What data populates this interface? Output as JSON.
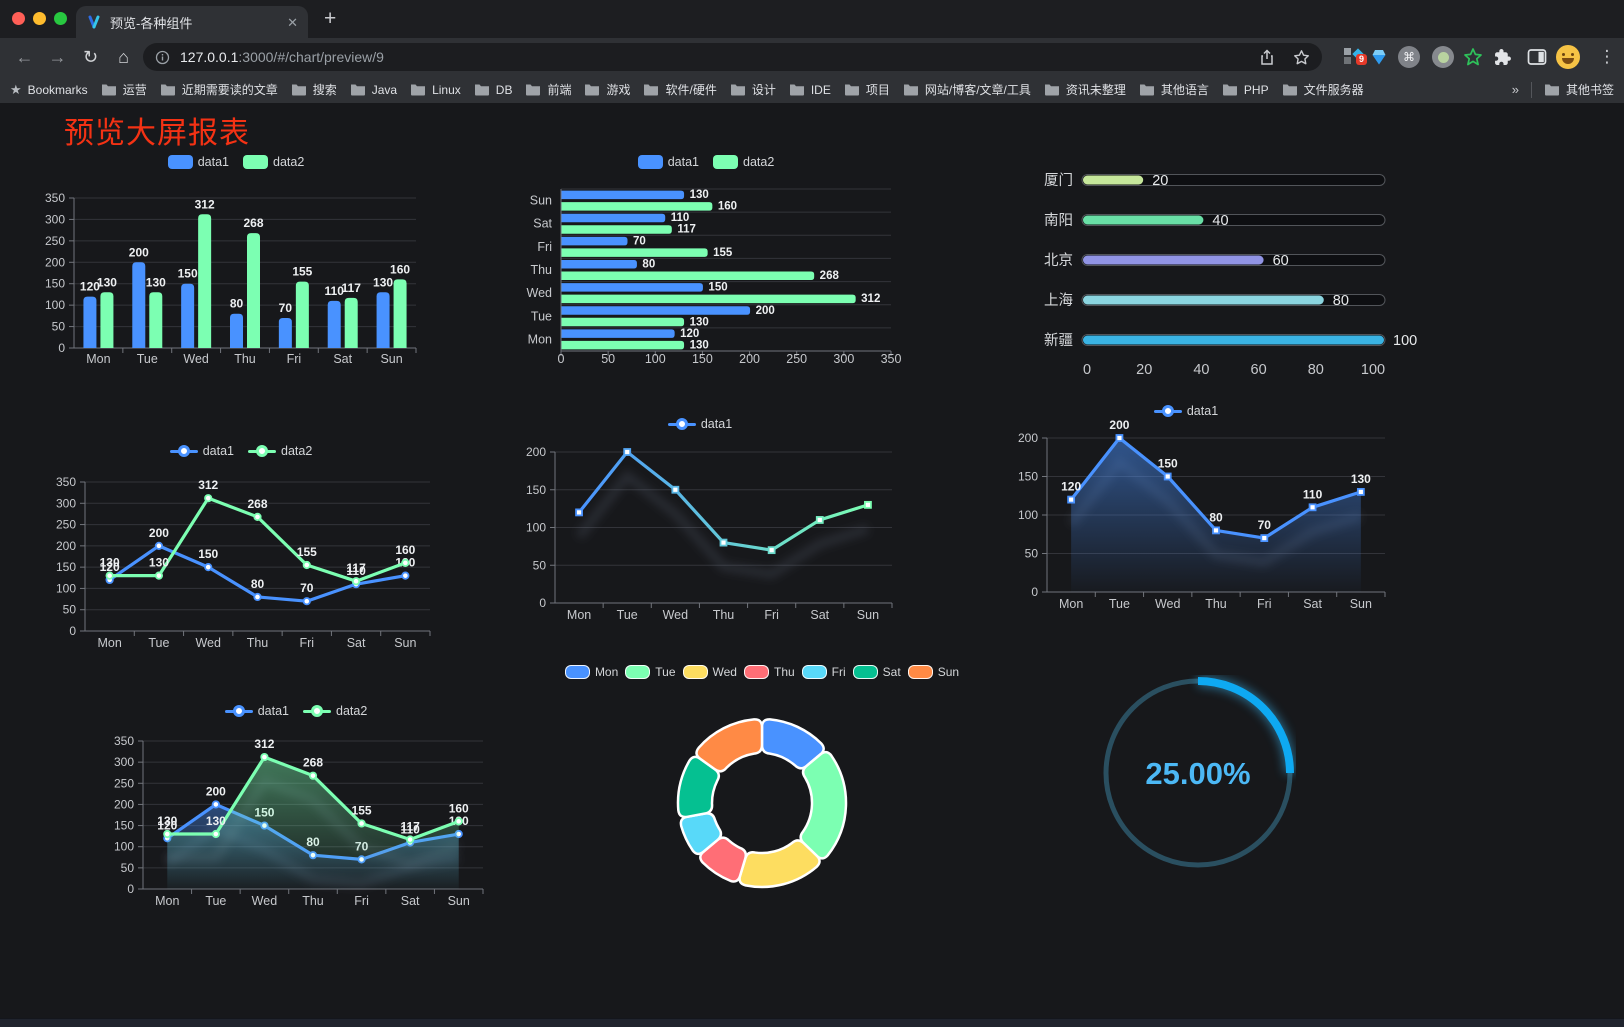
{
  "browser": {
    "tab_title": "预览-各种组件",
    "url_host": "127.0.0.1",
    "url_path": ":3000/#/chart/preview/9",
    "extension_badge": "9",
    "bookmarks_label": "Bookmarks",
    "bookmark_folders": [
      "运营",
      "近期需要读的文章",
      "搜索",
      "Java",
      "Linux",
      "DB",
      "前端",
      "游戏",
      "软件/硬件",
      "设计",
      "IDE",
      "项目",
      "网站/博客/文章/工具",
      "资讯未整理",
      "其他语言",
      "PHP",
      "文件服务器"
    ],
    "bookmarks_overflow": "»",
    "other_bookmarks": "其他书签"
  },
  "icons": {
    "close": "✕",
    "new_tab": "+",
    "back": "←",
    "forward": "→",
    "reload": "↻",
    "home": "⌂",
    "menu": "⋮",
    "cmd": "⌘",
    "bookmarks_star": "★"
  },
  "page": {
    "title": "预览大屏报表",
    "title_color": "#f43214",
    "background": "#17181b"
  },
  "chart_data": [
    {
      "id": "grouped-bar",
      "type": "bar",
      "legend_position": "top",
      "categories": [
        "Mon",
        "Tue",
        "Wed",
        "Thu",
        "Fri",
        "Sat",
        "Sun"
      ],
      "series": [
        {
          "name": "data1",
          "color": "#4992ff",
          "values": [
            120,
            200,
            150,
            80,
            70,
            110,
            130
          ]
        },
        {
          "name": "data2",
          "color": "#7cffb2",
          "values": [
            130,
            130,
            312,
            268,
            155,
            117,
            160
          ]
        }
      ],
      "ylim": [
        0,
        350
      ],
      "yticks": [
        0,
        50,
        100,
        150,
        200,
        250,
        300,
        350
      ],
      "value_labels": true,
      "grid": true
    },
    {
      "id": "horizontal-bar",
      "type": "bar-horizontal",
      "legend_position": "top",
      "categories": [
        "Mon",
        "Tue",
        "Wed",
        "Thu",
        "Fri",
        "Sat",
        "Sun"
      ],
      "first_category_position": "bottom",
      "series": [
        {
          "name": "data1",
          "color": "#4992ff",
          "values": [
            120,
            200,
            150,
            80,
            70,
            110,
            130
          ]
        },
        {
          "name": "data2",
          "color": "#7cffb2",
          "values": [
            130,
            130,
            312,
            268,
            155,
            117,
            160
          ]
        }
      ],
      "xlim": [
        0,
        350
      ],
      "xticks": [
        0,
        50,
        100,
        150,
        200,
        250,
        300,
        350
      ],
      "value_labels": true,
      "grid": true
    },
    {
      "id": "progress-bars",
      "type": "progress",
      "items": [
        {
          "label": "厦门",
          "value": 20,
          "color": "#c6e79b"
        },
        {
          "label": "南阳",
          "value": 40,
          "color": "#69dfa6"
        },
        {
          "label": "北京",
          "value": 60,
          "color": "#9194e5"
        },
        {
          "label": "上海",
          "value": 80,
          "color": "#8bd5e0"
        },
        {
          "label": "新疆",
          "value": 100,
          "color": "#3ab3e3"
        }
      ],
      "max": 100,
      "xticks": [
        0,
        20,
        40,
        60,
        80,
        100
      ]
    },
    {
      "id": "line-two-series",
      "type": "line",
      "marker": "circle",
      "value_labels": true,
      "categories": [
        "Mon",
        "Tue",
        "Wed",
        "Thu",
        "Fri",
        "Sat",
        "Sun"
      ],
      "series": [
        {
          "name": "data1",
          "color": "#4992ff",
          "values": [
            120,
            200,
            150,
            80,
            70,
            110,
            130
          ]
        },
        {
          "name": "data2",
          "color": "#7cffb2",
          "values": [
            130,
            130,
            312,
            268,
            155,
            117,
            160
          ]
        }
      ],
      "ylim": [
        0,
        350
      ],
      "yticks": [
        0,
        50,
        100,
        150,
        200,
        250,
        300,
        350
      ]
    },
    {
      "id": "line-gradient",
      "type": "line",
      "marker": "rect",
      "value_labels": false,
      "shadow": true,
      "categories": [
        "Mon",
        "Tue",
        "Wed",
        "Thu",
        "Fri",
        "Sat",
        "Sun"
      ],
      "series": [
        {
          "name": "data1",
          "gradient": [
            "#4992ff",
            "#7cffb2"
          ],
          "values": [
            120,
            200,
            150,
            80,
            70,
            110,
            130
          ]
        }
      ],
      "ylim": [
        0,
        200
      ],
      "yticks": [
        0,
        50,
        100,
        150,
        200
      ]
    },
    {
      "id": "area-single",
      "type": "line",
      "marker": "rect",
      "area": true,
      "value_labels": true,
      "shadow": true,
      "categories": [
        "Mon",
        "Tue",
        "Wed",
        "Thu",
        "Fri",
        "Sat",
        "Sun"
      ],
      "series": [
        {
          "name": "data1",
          "color": "#4992ff",
          "values": [
            120,
            200,
            150,
            80,
            70,
            110,
            130
          ]
        }
      ],
      "ylim": [
        0,
        200
      ],
      "yticks": [
        0,
        50,
        100,
        150,
        200
      ]
    },
    {
      "id": "area-double",
      "type": "line",
      "marker": "circle",
      "area": true,
      "value_labels": true,
      "shadow": true,
      "categories": [
        "Mon",
        "Tue",
        "Wed",
        "Thu",
        "Fri",
        "Sat",
        "Sun"
      ],
      "series": [
        {
          "name": "data1",
          "color": "#4992ff",
          "values": [
            120,
            200,
            150,
            80,
            70,
            110,
            130
          ]
        },
        {
          "name": "data2",
          "color": "#7cffb2",
          "values": [
            130,
            130,
            312,
            268,
            155,
            117,
            160
          ]
        }
      ],
      "ylim": [
        0,
        350
      ],
      "yticks": [
        0,
        50,
        100,
        150,
        200,
        250,
        300,
        350
      ]
    },
    {
      "id": "donut",
      "type": "pie",
      "legend_position": "top",
      "categories": [
        "Mon",
        "Tue",
        "Wed",
        "Thu",
        "Fri",
        "Sat",
        "Sun"
      ],
      "values": [
        120,
        200,
        150,
        80,
        70,
        110,
        130
      ],
      "colors": [
        "#4992ff",
        "#7cffb2",
        "#fddd60",
        "#ff6e76",
        "#58d9f9",
        "#05c091",
        "#ff8a45"
      ],
      "inner_radius_ratio": 0.6,
      "border_color": "#ffffff"
    },
    {
      "id": "gauge",
      "type": "gauge",
      "percent": 25,
      "label": "25.00%",
      "color": "#0ea9f2",
      "track_color": "#2a4f60",
      "text_color": "#4cb8f5"
    }
  ]
}
